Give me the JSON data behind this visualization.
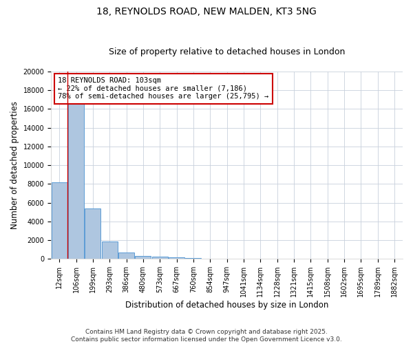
{
  "title_line1": "18, REYNOLDS ROAD, NEW MALDEN, KT3 5NG",
  "title_line2": "Size of property relative to detached houses in London",
  "xlabel": "Distribution of detached houses by size in London",
  "ylabel": "Number of detached properties",
  "bar_color": "#aec6e0",
  "bar_edge_color": "#5b9bd5",
  "categories": [
    "12sqm",
    "106sqm",
    "199sqm",
    "293sqm",
    "386sqm",
    "480sqm",
    "573sqm",
    "667sqm",
    "760sqm",
    "854sqm",
    "947sqm",
    "1041sqm",
    "1134sqm",
    "1228sqm",
    "1321sqm",
    "1415sqm",
    "1508sqm",
    "1602sqm",
    "1695sqm",
    "1789sqm",
    "1882sqm"
  ],
  "values": [
    8200,
    16600,
    5400,
    1850,
    700,
    320,
    230,
    160,
    120,
    50,
    30,
    20,
    15,
    10,
    8,
    6,
    5,
    4,
    3,
    2,
    1
  ],
  "ylim": [
    0,
    20000
  ],
  "yticks": [
    0,
    2000,
    4000,
    6000,
    8000,
    10000,
    12000,
    14000,
    16000,
    18000,
    20000
  ],
  "vline_x_index": 1,
  "vline_color": "#cc0000",
  "annotation_text": "18 REYNOLDS ROAD: 103sqm\n← 22% of detached houses are smaller (7,186)\n78% of semi-detached houses are larger (25,795) →",
  "annotation_box_color": "#cc0000",
  "annotation_bg": "#ffffff",
  "footer_line1": "Contains HM Land Registry data © Crown copyright and database right 2025.",
  "footer_line2": "Contains public sector information licensed under the Open Government Licence v3.0.",
  "background_color": "#ffffff",
  "grid_color": "#c8d0dc",
  "title_fontsize": 10,
  "subtitle_fontsize": 9,
  "axis_label_fontsize": 8.5,
  "tick_fontsize": 7,
  "annotation_fontsize": 7.5,
  "footer_fontsize": 6.5
}
